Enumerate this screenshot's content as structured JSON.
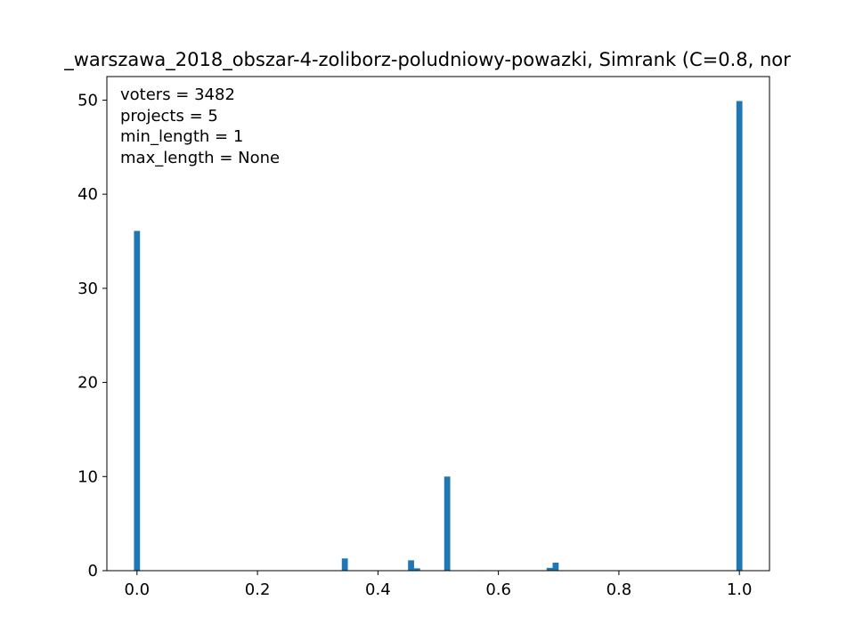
{
  "chart_data": {
    "type": "bar",
    "title": "_warszawa_2018_obszar-4-zoliborz-poludniowy-powazki, Simrank (C=0.8, nor",
    "xlabel": "",
    "ylabel": "",
    "xlim": [
      -0.05,
      1.05
    ],
    "ylim": [
      0,
      52.5
    ],
    "x_ticks": [
      {
        "value": 0.0,
        "label": "0.0"
      },
      {
        "value": 0.2,
        "label": "0.2"
      },
      {
        "value": 0.4,
        "label": "0.4"
      },
      {
        "value": 0.6,
        "label": "0.6"
      },
      {
        "value": 0.8,
        "label": "0.8"
      },
      {
        "value": 1.0,
        "label": "1.0"
      }
    ],
    "y_ticks": [
      {
        "value": 0,
        "label": "0"
      },
      {
        "value": 10,
        "label": "10"
      },
      {
        "value": 20,
        "label": "20"
      },
      {
        "value": 30,
        "label": "30"
      },
      {
        "value": 40,
        "label": "40"
      },
      {
        "value": 50,
        "label": "50"
      }
    ],
    "bin_width": 0.01,
    "bars": [
      {
        "x": 0.0,
        "value": 36.1
      },
      {
        "x": 0.345,
        "value": 1.3
      },
      {
        "x": 0.455,
        "value": 1.1
      },
      {
        "x": 0.465,
        "value": 0.25
      },
      {
        "x": 0.515,
        "value": 10.0
      },
      {
        "x": 0.575,
        "value": 0.05
      },
      {
        "x": 0.685,
        "value": 0.3
      },
      {
        "x": 0.695,
        "value": 0.85
      },
      {
        "x": 1.0,
        "value": 49.9
      }
    ],
    "bar_color": "#1f77b4",
    "grid": false,
    "annotations": [
      "voters = 3482",
      "projects = 5",
      "min_length = 1",
      "max_length = None"
    ]
  }
}
